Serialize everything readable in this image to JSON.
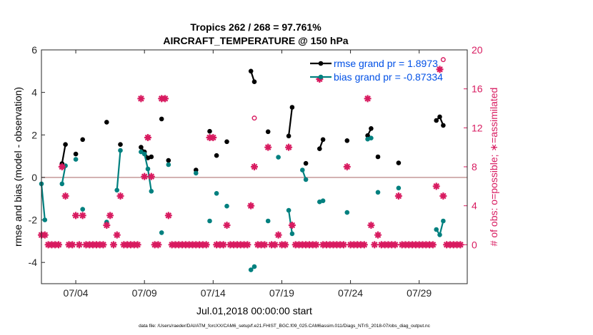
{
  "chart_data": {
    "type": "line",
    "title": "Tropics 262 / 268 = 97.761%",
    "subtitle": "AIRCRAFT_TEMPERATURE @ 150 hPa",
    "xlabel": "Jul.01,2018 00:00:00 start",
    "ylabel": "rmse and bias (model - observation)",
    "y2label": "# of obs: o=possible; ∗=assimilated",
    "footnote": "data file: /Users/raeder/DAI/ATM_forcXX/CAM6_setup/f.e21.FHIST_BGC.f09_025.CAM6assim.011/Diags_NTrS_2018-07/obs_diag_output.nc",
    "xlim": [
      1.5,
      32.5
    ],
    "ylim": [
      -5,
      6
    ],
    "y2lim": [
      -4,
      20
    ],
    "x_ticks": [
      4,
      9,
      14,
      19,
      24,
      29
    ],
    "x_tick_labels": [
      "07/04",
      "07/09",
      "07/14",
      "07/19",
      "07/24",
      "07/29"
    ],
    "y_ticks": [
      -4,
      -2,
      0,
      2,
      4,
      6
    ],
    "y_tick_labels": [
      "-4",
      "-2",
      "0",
      "2",
      "4",
      "6"
    ],
    "y2_ticks": [
      0,
      4,
      8,
      12,
      16,
      20
    ],
    "y2_tick_labels": [
      "0",
      "4",
      "8",
      "12",
      "16",
      "20"
    ],
    "zero_line": 0,
    "legend": {
      "rmse": "rmse grand pr = 1.8973",
      "bias": "bias grand pr = -0.87334"
    },
    "colors": {
      "rmse": "#000000",
      "bias": "#00807f",
      "obs": "#d81b60",
      "zero_line": "#c8a0a0",
      "legend_text": "#0050e6"
    },
    "rmse_segments": [
      [
        [
          3.0,
          0.65
        ],
        [
          3.25,
          1.55
        ]
      ],
      [
        [
          4.0,
          1.1
        ]
      ],
      [
        [
          4.5,
          1.78
        ]
      ],
      [
        [
          6.25,
          2.6
        ]
      ],
      [
        [
          7.25,
          1.55
        ]
      ],
      [
        [
          8.75,
          1.42
        ],
        [
          9.0,
          1.2
        ],
        [
          9.25,
          0.92
        ],
        [
          9.5,
          0.97
        ]
      ],
      [
        [
          10.25,
          2.75
        ]
      ],
      [
        [
          10.75,
          0.8
        ]
      ],
      [
        [
          12.75,
          0.35
        ]
      ],
      [
        [
          13.75,
          2.17
        ]
      ],
      [
        [
          14.25,
          1.03
        ]
      ],
      [
        [
          15.0,
          1.68
        ]
      ],
      [
        [
          16.75,
          5.0
        ],
        [
          17.0,
          4.5
        ]
      ],
      [
        [
          18.0,
          2.15
        ]
      ],
      [
        [
          19.5,
          1.95
        ],
        [
          19.75,
          3.3
        ]
      ],
      [
        [
          20.75,
          0.66
        ]
      ],
      [
        [
          21.75,
          1.35
        ],
        [
          22.0,
          1.78
        ]
      ],
      [
        [
          23.75,
          1.73
        ]
      ],
      [
        [
          25.25,
          1.97
        ],
        [
          25.5,
          2.3
        ]
      ],
      [
        [
          26.0,
          0.97
        ]
      ],
      [
        [
          27.5,
          0.68
        ]
      ],
      [
        [
          30.25,
          2.68
        ],
        [
          30.5,
          2.85
        ],
        [
          30.75,
          2.45
        ]
      ]
    ],
    "bias_segments": [
      [
        [
          1.5,
          -0.3
        ],
        [
          1.75,
          -2.0
        ]
      ],
      [
        [
          3.0,
          -0.3
        ],
        [
          3.25,
          0.55
        ]
      ],
      [
        [
          4.0,
          0.85
        ]
      ],
      [
        [
          4.5,
          -1.5
        ]
      ],
      [
        [
          6.25,
          -2.1
        ]
      ],
      [
        [
          7.0,
          -0.6
        ],
        [
          7.25,
          1.27
        ]
      ],
      [
        [
          8.75,
          1.2
        ],
        [
          9.0,
          1.1
        ],
        [
          9.25,
          0.4
        ],
        [
          9.5,
          -0.65
        ]
      ],
      [
        [
          10.25,
          -2.6
        ]
      ],
      [
        [
          10.75,
          0.6
        ]
      ],
      [
        [
          12.75,
          0.2
        ]
      ],
      [
        [
          13.75,
          -2.05
        ]
      ],
      [
        [
          14.25,
          -0.75
        ]
      ],
      [
        [
          15.0,
          -1.35
        ]
      ],
      [
        [
          16.75,
          -4.35
        ],
        [
          17.0,
          -4.2
        ]
      ],
      [
        [
          18.0,
          -2.05
        ]
      ],
      [
        [
          18.75,
          0.95
        ]
      ],
      [
        [
          19.5,
          -1.55
        ],
        [
          19.75,
          -2.65
        ]
      ],
      [
        [
          20.5,
          0.35
        ],
        [
          20.75,
          -0.1
        ]
      ],
      [
        [
          21.75,
          -1.15
        ],
        [
          22.0,
          -1.1
        ]
      ],
      [
        [
          23.75,
          -1.65
        ]
      ],
      [
        [
          25.25,
          1.8
        ],
        [
          25.5,
          1.85
        ]
      ],
      [
        [
          26.0,
          -0.7
        ]
      ],
      [
        [
          27.5,
          -0.5
        ]
      ],
      [
        [
          30.25,
          -2.45
        ],
        [
          30.5,
          -2.7
        ],
        [
          30.75,
          -2.05
        ]
      ]
    ],
    "obs_assimilated": [
      [
        1.5,
        1
      ],
      [
        1.75,
        1
      ],
      [
        2.0,
        0
      ],
      [
        2.25,
        0
      ],
      [
        2.5,
        0
      ],
      [
        2.75,
        0
      ],
      [
        3.0,
        8
      ],
      [
        3.25,
        5
      ],
      [
        3.5,
        0
      ],
      [
        3.75,
        0
      ],
      [
        4.0,
        3
      ],
      [
        4.25,
        0
      ],
      [
        4.5,
        3
      ],
      [
        4.75,
        0
      ],
      [
        5.0,
        0
      ],
      [
        5.25,
        0
      ],
      [
        5.5,
        0
      ],
      [
        5.75,
        0
      ],
      [
        6.0,
        0
      ],
      [
        6.25,
        2
      ],
      [
        6.5,
        3
      ],
      [
        6.75,
        0
      ],
      [
        7.0,
        1
      ],
      [
        7.25,
        5
      ],
      [
        7.5,
        0
      ],
      [
        7.75,
        0
      ],
      [
        8.0,
        0
      ],
      [
        8.25,
        0
      ],
      [
        8.5,
        0
      ],
      [
        8.75,
        15
      ],
      [
        9.0,
        7
      ],
      [
        9.25,
        11
      ],
      [
        9.5,
        7
      ],
      [
        9.75,
        0
      ],
      [
        10.0,
        0
      ],
      [
        10.25,
        15
      ],
      [
        10.5,
        15
      ],
      [
        10.75,
        3
      ],
      [
        11.0,
        0
      ],
      [
        11.25,
        0
      ],
      [
        11.5,
        0
      ],
      [
        11.75,
        0
      ],
      [
        12.0,
        0
      ],
      [
        12.25,
        0
      ],
      [
        12.5,
        0
      ],
      [
        12.75,
        0
      ],
      [
        13.0,
        0
      ],
      [
        13.25,
        0
      ],
      [
        13.5,
        0
      ],
      [
        13.75,
        11
      ],
      [
        14.0,
        11
      ],
      [
        14.25,
        0
      ],
      [
        14.5,
        0
      ],
      [
        14.75,
        0
      ],
      [
        15.0,
        2
      ],
      [
        15.25,
        0
      ],
      [
        15.5,
        0
      ],
      [
        15.75,
        0
      ],
      [
        16.0,
        0
      ],
      [
        16.25,
        0
      ],
      [
        16.5,
        0
      ],
      [
        16.75,
        4
      ],
      [
        17.0,
        8
      ],
      [
        17.25,
        0
      ],
      [
        17.5,
        0
      ],
      [
        17.75,
        0
      ],
      [
        18.0,
        10
      ],
      [
        18.25,
        0
      ],
      [
        18.5,
        0
      ],
      [
        18.75,
        1
      ],
      [
        19.0,
        0
      ],
      [
        19.25,
        0
      ],
      [
        19.5,
        10
      ],
      [
        19.75,
        2
      ],
      [
        20.0,
        0
      ],
      [
        20.25,
        0
      ],
      [
        20.5,
        0
      ],
      [
        20.75,
        0
      ],
      [
        21.0,
        0
      ],
      [
        21.25,
        0
      ],
      [
        21.5,
        0
      ],
      [
        21.75,
        17
      ],
      [
        22.0,
        0
      ],
      [
        22.25,
        0
      ],
      [
        22.5,
        0
      ],
      [
        22.75,
        0
      ],
      [
        23.0,
        0
      ],
      [
        23.25,
        0
      ],
      [
        23.5,
        0
      ],
      [
        23.75,
        8
      ],
      [
        24.0,
        0
      ],
      [
        24.25,
        0
      ],
      [
        24.5,
        0
      ],
      [
        24.75,
        0
      ],
      [
        25.0,
        0
      ],
      [
        25.25,
        15
      ],
      [
        25.5,
        2
      ],
      [
        25.75,
        0
      ],
      [
        26.0,
        1
      ],
      [
        26.25,
        0
      ],
      [
        26.5,
        0
      ],
      [
        26.75,
        0
      ],
      [
        27.0,
        0
      ],
      [
        27.25,
        0
      ],
      [
        27.5,
        5
      ],
      [
        27.75,
        0
      ],
      [
        28.0,
        0
      ],
      [
        28.25,
        0
      ],
      [
        28.5,
        0
      ],
      [
        28.75,
        0
      ],
      [
        29.0,
        0
      ],
      [
        29.25,
        0
      ],
      [
        29.5,
        0
      ],
      [
        29.75,
        0
      ],
      [
        30.0,
        0
      ],
      [
        30.25,
        6
      ],
      [
        30.5,
        18
      ],
      [
        30.75,
        5
      ],
      [
        31.0,
        0
      ],
      [
        31.25,
        0
      ],
      [
        31.5,
        0
      ],
      [
        31.75,
        0
      ],
      [
        32.0,
        0
      ]
    ],
    "obs_possible": [
      [
        3.0,
        8
      ],
      [
        9.25,
        11
      ],
      [
        16.75,
        4
      ],
      [
        17.0,
        13
      ],
      [
        19.75,
        2
      ],
      [
        21.75,
        17
      ],
      [
        30.75,
        19
      ]
    ]
  }
}
